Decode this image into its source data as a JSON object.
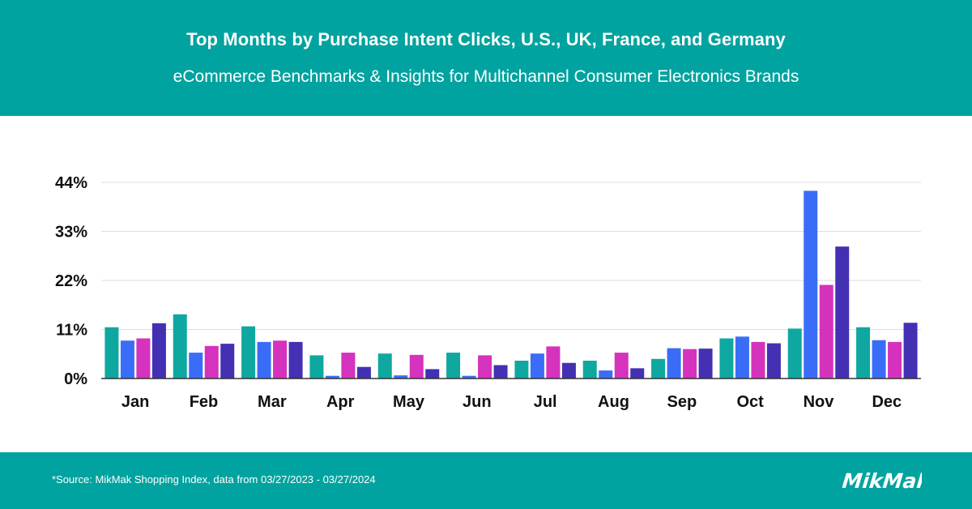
{
  "header": {
    "title": "Top Months by Purchase Intent Clicks, U.S., UK, France, and Germany",
    "subtitle": "eCommerce Benchmarks & Insights for Multichannel Consumer Electronics Brands"
  },
  "footer": {
    "source": "*Source: MikMak Shopping Index, data from  03/27/2023 - 03/27/2024",
    "logo_text": "MikMak"
  },
  "colors": {
    "header_bg": "#00a39f",
    "series_colors": [
      "#0fa8a0",
      "#3a6df7",
      "#d532bd",
      "#4330b3"
    ]
  },
  "chart_data": {
    "type": "bar",
    "categories": [
      "Jan",
      "Feb",
      "Mar",
      "Apr",
      "May",
      "Jun",
      "Jul",
      "Aug",
      "Sep",
      "Oct",
      "Nov",
      "Dec"
    ],
    "series": [
      {
        "values": [
          11.5,
          14.4,
          11.7,
          5.2,
          5.6,
          5.8,
          4.0,
          4.0,
          4.4,
          9.0,
          11.2,
          11.5
        ]
      },
      {
        "values": [
          8.5,
          5.8,
          8.2,
          0.6,
          0.7,
          0.6,
          5.6,
          1.8,
          6.8,
          9.4,
          42.1,
          8.6
        ]
      },
      {
        "values": [
          9.0,
          7.3,
          8.5,
          5.8,
          5.3,
          5.2,
          7.2,
          5.8,
          6.6,
          8.2,
          21.0,
          8.2
        ]
      },
      {
        "values": [
          12.4,
          7.8,
          8.2,
          2.6,
          2.1,
          3.0,
          3.5,
          2.3,
          6.7,
          7.9,
          29.6,
          12.5
        ]
      }
    ],
    "yticks": [
      "0%",
      "11%",
      "22%",
      "33%",
      "44%"
    ],
    "ytick_values": [
      0,
      11,
      22,
      33,
      44
    ],
    "ylim": [
      0,
      44
    ],
    "grid": true,
    "legend": "none"
  }
}
